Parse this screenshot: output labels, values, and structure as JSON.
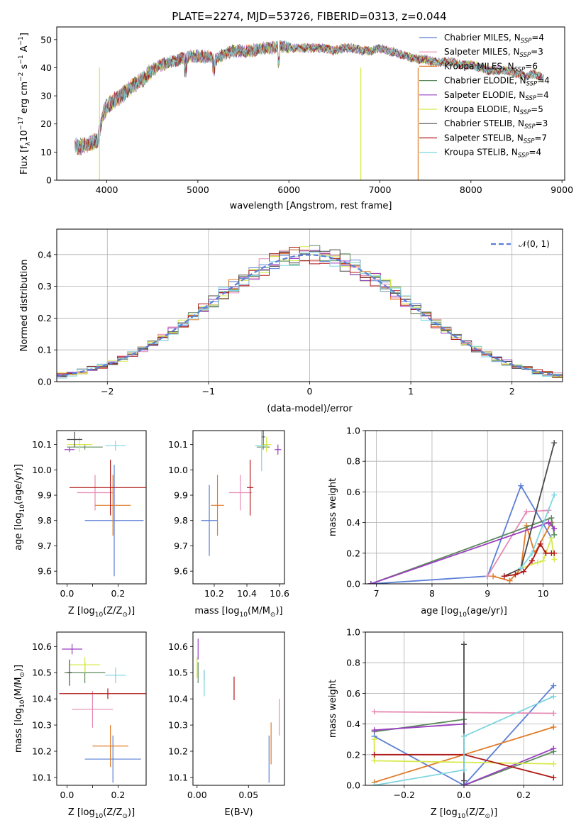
{
  "figure": {
    "title": "PLATE=2274, MJD=53726, FIBERID=0313, z=0.044"
  },
  "models": [
    {
      "name": "Chabrier MILES",
      "nssp": "4",
      "color": "#5b7fd6"
    },
    {
      "name": "Salpeter MILES",
      "nssp": "3",
      "color": "#e58ab3"
    },
    {
      "name": "Kroupa MILES",
      "nssp": "6",
      "color": "#e07a26"
    },
    {
      "name": "Chabrier ELODIE",
      "nssp": "4",
      "color": "#5b8a5b"
    },
    {
      "name": "Salpeter ELODIE",
      "nssp": "4",
      "color": "#9a3fc0"
    },
    {
      "name": "Kroupa ELODIE",
      "nssp": "5",
      "color": "#d6ea4a"
    },
    {
      "name": "Chabrier STELIB",
      "nssp": "3",
      "color": "#4a4a4a"
    },
    {
      "name": "Salpeter STELIB",
      "nssp": "7",
      "color": "#b01818"
    },
    {
      "name": "Kroupa STELIB",
      "nssp": "4",
      "color": "#7fd6e0"
    }
  ],
  "chart_data": [
    {
      "id": "spectrum",
      "type": "line",
      "xlabel": "wavelength [Angstrom, rest frame]",
      "ylabel_parts": [
        "Flux [f",
        "λ",
        "10",
        "−17",
        " erg cm",
        "−2",
        " s",
        "−1",
        " A",
        "−1",
        "]"
      ],
      "xlim": [
        3450,
        9030
      ],
      "ylim": [
        0,
        54.5
      ],
      "xticks": [
        4000,
        5000,
        6000,
        7000,
        8000,
        9000
      ],
      "yticks": [
        0,
        10,
        20,
        30,
        40,
        50
      ],
      "legend_sub": "SSP",
      "legend_loc": "right",
      "envelope_x": [
        3650,
        3700,
        3800,
        3900,
        3960,
        4000,
        4100,
        4200,
        4300,
        4400,
        4500,
        4600,
        4700,
        4800,
        4900,
        5000,
        5100,
        5200,
        5300,
        5400,
        5500,
        5600,
        5700,
        5800,
        5900,
        6000,
        6100,
        6200,
        6300,
        6400,
        6500,
        6600,
        6700,
        6800,
        6900,
        7000,
        7100,
        7200,
        7300,
        7400,
        7500,
        7600,
        7700,
        7800,
        7900,
        8000,
        8100,
        8200,
        8300,
        8400,
        8500,
        8600,
        8700,
        8800
      ],
      "envelope_y": [
        12,
        12,
        13,
        14,
        24,
        26,
        29,
        31,
        34,
        36,
        39,
        41,
        42,
        43,
        44,
        44,
        44,
        43,
        45,
        46,
        46,
        46,
        47,
        47,
        48,
        47,
        47,
        47,
        47,
        47,
        46,
        47,
        47,
        46,
        46,
        47,
        46,
        45,
        44,
        43,
        43,
        42,
        42,
        42,
        41,
        41,
        40,
        39,
        39,
        39,
        38,
        37,
        38,
        36
      ],
      "drops": [
        {
          "x": 3920,
          "model": "Kroupa ELODIE"
        },
        {
          "x": 6790,
          "model": "Kroupa ELODIE"
        },
        {
          "x": 7420,
          "model": "Kroupa MILES"
        }
      ]
    },
    {
      "id": "residuals",
      "type": "step-histogram",
      "xlabel": "(data-model)/error",
      "ylabel": "Normed distribution",
      "xlim": [
        -2.5,
        2.5
      ],
      "ylim": [
        0,
        0.48
      ],
      "xticks": [
        -2,
        -1,
        0,
        1,
        2
      ],
      "yticks": [
        0.0,
        0.1,
        0.2,
        0.3,
        0.4
      ],
      "grid": true,
      "bin_width": 0.1,
      "reference_label": "𝒩(0, 1)",
      "reference_color": "#5b7fd6",
      "legend_loc": "top-right"
    },
    {
      "id": "z-age",
      "type": "errorbar",
      "xlabel_parts": [
        "Z [log",
        "10",
        "(Z/Z",
        "⊙",
        ")]"
      ],
      "ylabel_parts": [
        "age  [log",
        "10",
        "(age/yr)]"
      ],
      "xlim": [
        -0.04,
        0.31
      ],
      "ylim": [
        9.55,
        10.155
      ],
      "xticks": [
        0.0,
        0.1,
        0.2
      ],
      "xtick_labels": [
        "0.0",
        "",
        "0.2"
      ],
      "yticks": [
        9.6,
        9.7,
        9.8,
        9.9,
        10.0,
        10.1
      ],
      "points": [
        {
          "model": "Chabrier MILES",
          "x": 0.185,
          "y": 9.8,
          "xerr": 0.115,
          "yerr": 0.22
        },
        {
          "model": "Salpeter MILES",
          "x": 0.11,
          "y": 9.91,
          "xerr": 0.07,
          "yerr": 0.07
        },
        {
          "model": "Kroupa MILES",
          "x": 0.18,
          "y": 9.86,
          "xerr": 0.07,
          "yerr": 0.12
        },
        {
          "model": "Chabrier ELODIE",
          "x": 0.07,
          "y": 10.09,
          "xerr": 0.07,
          "yerr": 0.01
        },
        {
          "model": "Salpeter ELODIE",
          "x": 0.01,
          "y": 10.08,
          "xerr": 0.02,
          "yerr": 0.01
        },
        {
          "model": "Kroupa ELODIE",
          "x": 0.05,
          "y": 10.1,
          "xerr": 0.05,
          "yerr": 0.03
        },
        {
          "model": "Chabrier STELIB",
          "x": 0.03,
          "y": 10.12,
          "xerr": 0.03,
          "yerr": 0.03
        },
        {
          "model": "Salpeter STELIB",
          "x": 0.17,
          "y": 9.93,
          "xerr": 0.16,
          "yerr": 0.11
        },
        {
          "model": "Kroupa STELIB",
          "x": 0.19,
          "y": 10.095,
          "xerr": 0.04,
          "yerr": 0.02
        }
      ]
    },
    {
      "id": "mass-age",
      "type": "errorbar",
      "xlabel_parts": [
        "mass [log",
        "10",
        "(M/M",
        "⊙",
        ")]"
      ],
      "ylabel_parts": [],
      "xlim": [
        10.07,
        10.63
      ],
      "ylim": [
        9.55,
        10.155
      ],
      "xticks": [
        10.2,
        10.4,
        10.6
      ],
      "xtick_labels": [
        "10.2",
        "10.4",
        "10.6"
      ],
      "yticks": [
        9.6,
        9.7,
        9.8,
        9.9,
        10.0,
        10.1
      ],
      "points": [
        {
          "model": "Chabrier MILES",
          "x": 10.17,
          "y": 9.8,
          "xerr": 0.05,
          "yerr": 0.14
        },
        {
          "model": "Salpeter MILES",
          "x": 10.36,
          "y": 9.91,
          "xerr": 0.07,
          "yerr": 0.07
        },
        {
          "model": "Kroupa MILES",
          "x": 10.22,
          "y": 9.86,
          "xerr": 0.04,
          "yerr": 0.12
        },
        {
          "model": "Chabrier ELODIE",
          "x": 10.5,
          "y": 10.09,
          "xerr": 0.04,
          "yerr": 0.01
        },
        {
          "model": "Salpeter ELODIE",
          "x": 10.59,
          "y": 10.08,
          "xerr": 0.02,
          "yerr": 0.02
        },
        {
          "model": "Kroupa ELODIE",
          "x": 10.52,
          "y": 10.1,
          "xerr": 0.03,
          "yerr": 0.03
        },
        {
          "model": "Chabrier STELIB",
          "x": 10.5,
          "y": 10.13,
          "xerr": 0.01,
          "yerr": 0.03
        },
        {
          "model": "Salpeter STELIB",
          "x": 10.42,
          "y": 9.93,
          "xerr": 0.02,
          "yerr": 0.11
        },
        {
          "model": "Kroupa STELIB",
          "x": 10.49,
          "y": 10.095,
          "xerr": 0.04,
          "yerr": 0.1
        }
      ]
    },
    {
      "id": "z-mass",
      "type": "errorbar",
      "xlabel_parts": [
        "Z [log",
        "10",
        "(Z/Z",
        "⊙",
        ")]"
      ],
      "ylabel_parts": [
        "mass [log",
        "10",
        "(M/M",
        "⊙",
        ")]"
      ],
      "xlim": [
        -0.04,
        0.31
      ],
      "ylim": [
        10.07,
        10.655
      ],
      "xticks": [
        0.0,
        0.1,
        0.2
      ],
      "xtick_labels": [
        "0.0",
        "",
        "0.2"
      ],
      "yticks": [
        10.1,
        10.2,
        10.3,
        10.4,
        10.5,
        10.6
      ],
      "points": [
        {
          "model": "Chabrier MILES",
          "x": 0.18,
          "y": 10.17,
          "xerr": 0.11,
          "yerr": 0.09
        },
        {
          "model": "Salpeter MILES",
          "x": 0.1,
          "y": 10.36,
          "xerr": 0.08,
          "yerr": 0.07
        },
        {
          "model": "Kroupa MILES",
          "x": 0.17,
          "y": 10.22,
          "xerr": 0.07,
          "yerr": 0.08
        },
        {
          "model": "Chabrier ELODIE",
          "x": 0.07,
          "y": 10.5,
          "xerr": 0.08,
          "yerr": 0.04
        },
        {
          "model": "Salpeter ELODIE",
          "x": 0.02,
          "y": 10.59,
          "xerr": 0.04,
          "yerr": 0.02
        },
        {
          "model": "Kroupa ELODIE",
          "x": 0.07,
          "y": 10.53,
          "xerr": 0.06,
          "yerr": 0.03
        },
        {
          "model": "Chabrier STELIB",
          "x": 0.01,
          "y": 10.5,
          "xerr": 0.01,
          "yerr": 0.05
        },
        {
          "model": "Salpeter STELIB",
          "x": 0.16,
          "y": 10.42,
          "xerr": 0.19,
          "yerr": 0.02
        },
        {
          "model": "Kroupa STELIB",
          "x": 0.19,
          "y": 10.49,
          "xerr": 0.04,
          "yerr": 0.03
        }
      ]
    },
    {
      "id": "ebv-mass",
      "type": "errorbar",
      "xlabel_parts": [
        "E(B-V)"
      ],
      "ylabel_parts": [],
      "xlim": [
        -0.004,
        0.085
      ],
      "ylim": [
        10.07,
        10.655
      ],
      "xticks": [
        0.0,
        0.05
      ],
      "xtick_labels": [
        "0.00",
        "0.05"
      ],
      "yticks": [
        10.1,
        10.2,
        10.3,
        10.4,
        10.5,
        10.6
      ],
      "points": [
        {
          "model": "Chabrier MILES",
          "x": 0.07,
          "y": 10.17,
          "xerr": 0,
          "yerr": 0.09
        },
        {
          "model": "Salpeter MILES",
          "x": 0.08,
          "y": 10.33,
          "xerr": 0,
          "yerr": 0.07
        },
        {
          "model": "Kroupa MILES",
          "x": 0.072,
          "y": 10.23,
          "xerr": 0,
          "yerr": 0.08
        },
        {
          "model": "Chabrier ELODIE",
          "x": 0.001,
          "y": 10.5,
          "xerr": 0,
          "yerr": 0.04
        },
        {
          "model": "Salpeter ELODIE",
          "x": 0.001,
          "y": 10.59,
          "xerr": 0,
          "yerr": 0.04
        },
        {
          "model": "Kroupa ELODIE",
          "x": 0.0,
          "y": 10.52,
          "xerr": 0,
          "yerr": 0.04
        },
        {
          "model": "Chabrier STELIB",
          "x": 0.007,
          "y": 10.49,
          "xerr": 0,
          "yerr": 0.02
        },
        {
          "model": "Salpeter STELIB",
          "x": 0.036,
          "y": 10.44,
          "xerr": 0,
          "yerr": 0.045
        },
        {
          "model": "Kroupa STELIB",
          "x": 0.007,
          "y": 10.46,
          "xerr": 0,
          "yerr": 0.05
        }
      ]
    },
    {
      "id": "weight-age",
      "type": "line",
      "xlabel_parts": [
        "age  [log",
        "10",
        "(age/yr)]"
      ],
      "ylabel": "mass weight",
      "xlim": [
        6.8,
        10.35
      ],
      "ylim": [
        0,
        1.0
      ],
      "xticks": [
        7,
        8,
        9,
        10
      ],
      "yticks": [
        0.0,
        0.2,
        0.4,
        0.6,
        0.8,
        1.0
      ],
      "grid": true,
      "series": [
        {
          "model": "Chabrier MILES",
          "x": [
            6.9,
            9.0,
            9.6,
            10.15
          ],
          "y": [
            0.0,
            0.05,
            0.64,
            0.3
          ]
        },
        {
          "model": "Salpeter MILES",
          "x": [
            9.0,
            9.7,
            10.1
          ],
          "y": [
            0.05,
            0.47,
            0.48
          ]
        },
        {
          "model": "Kroupa MILES",
          "x": [
            9.1,
            9.4,
            9.6,
            9.7,
            9.85,
            10.15
          ],
          "y": [
            0.05,
            0.02,
            0.1,
            0.38,
            0.2,
            0.4
          ]
        },
        {
          "model": "Chabrier ELODIE",
          "x": [
            6.9,
            10.15,
            10.2
          ],
          "y": [
            0.0,
            0.43,
            0.32
          ]
        },
        {
          "model": "Salpeter ELODIE",
          "x": [
            6.9,
            10.1,
            10.2
          ],
          "y": [
            0.0,
            0.4,
            0.36
          ]
        },
        {
          "model": "Kroupa ELODIE",
          "x": [
            9.6,
            9.9,
            10.0,
            10.15,
            10.2
          ],
          "y": [
            0.1,
            0.14,
            0.15,
            0.3,
            0.16
          ]
        },
        {
          "model": "Chabrier STELIB",
          "x": [
            9.3,
            9.6,
            10.2
          ],
          "y": [
            0.05,
            0.1,
            0.92
          ]
        },
        {
          "model": "Salpeter STELIB",
          "x": [
            9.3,
            9.5,
            9.65,
            9.8,
            9.95,
            10.05,
            10.15,
            10.2
          ],
          "y": [
            0.05,
            0.06,
            0.08,
            0.15,
            0.26,
            0.2,
            0.2,
            0.2
          ]
        },
        {
          "model": "Kroupa STELIB",
          "x": [
            9.6,
            9.8,
            10.2
          ],
          "y": [
            0.1,
            0.2,
            0.58
          ]
        }
      ]
    },
    {
      "id": "weight-z",
      "type": "line",
      "xlabel_parts": [
        "Z [log",
        "10",
        "(Z/Z",
        "⊙",
        ")]"
      ],
      "ylabel": "mass weight",
      "xlim": [
        -0.33,
        0.33
      ],
      "ylim": [
        0,
        1.0
      ],
      "xticks": [
        -0.2,
        0.0,
        0.2
      ],
      "xtick_labels": [
        "−0.2",
        "0.0",
        "0.2"
      ],
      "yticks": [
        0.0,
        0.2,
        0.4,
        0.6,
        0.8,
        1.0
      ],
      "grid": true,
      "series": [
        {
          "model": "Chabrier MILES",
          "x": [
            -0.3,
            0.0,
            0.3
          ],
          "y": [
            0.32,
            0.0,
            0.65
          ]
        },
        {
          "model": "Salpeter MILES",
          "x": [
            -0.3,
            0.3
          ],
          "y": [
            0.48,
            0.47
          ]
        },
        {
          "model": "Kroupa MILES",
          "x": [
            -0.3,
            0.0,
            0.3
          ],
          "y": [
            0.02,
            0.2,
            0.38
          ]
        },
        {
          "model": "Chabrier ELODIE",
          "x": [
            -0.3,
            0.0,
            0.0,
            0.3
          ],
          "y": [
            0.35,
            0.43,
            0.0,
            0.22
          ]
        },
        {
          "model": "Salpeter ELODIE",
          "x": [
            -0.3,
            0.0,
            0.0,
            0.3
          ],
          "y": [
            0.36,
            0.4,
            0.0,
            0.24
          ]
        },
        {
          "model": "Kroupa ELODIE",
          "x": [
            -0.3,
            -0.3,
            0.3
          ],
          "y": [
            0.3,
            0.16,
            0.14
          ]
        },
        {
          "model": "Chabrier STELIB",
          "x": [
            0.0,
            0.0
          ],
          "y": [
            0.92,
            0.03
          ]
        },
        {
          "model": "Salpeter STELIB",
          "x": [
            -0.3,
            0.0,
            0.3
          ],
          "y": [
            0.2,
            0.2,
            0.05
          ]
        },
        {
          "model": "Kroupa STELIB",
          "x": [
            -0.3,
            0.0,
            0.0,
            0.3
          ],
          "y": [
            0.0,
            0.1,
            0.32,
            0.58
          ]
        }
      ]
    }
  ]
}
